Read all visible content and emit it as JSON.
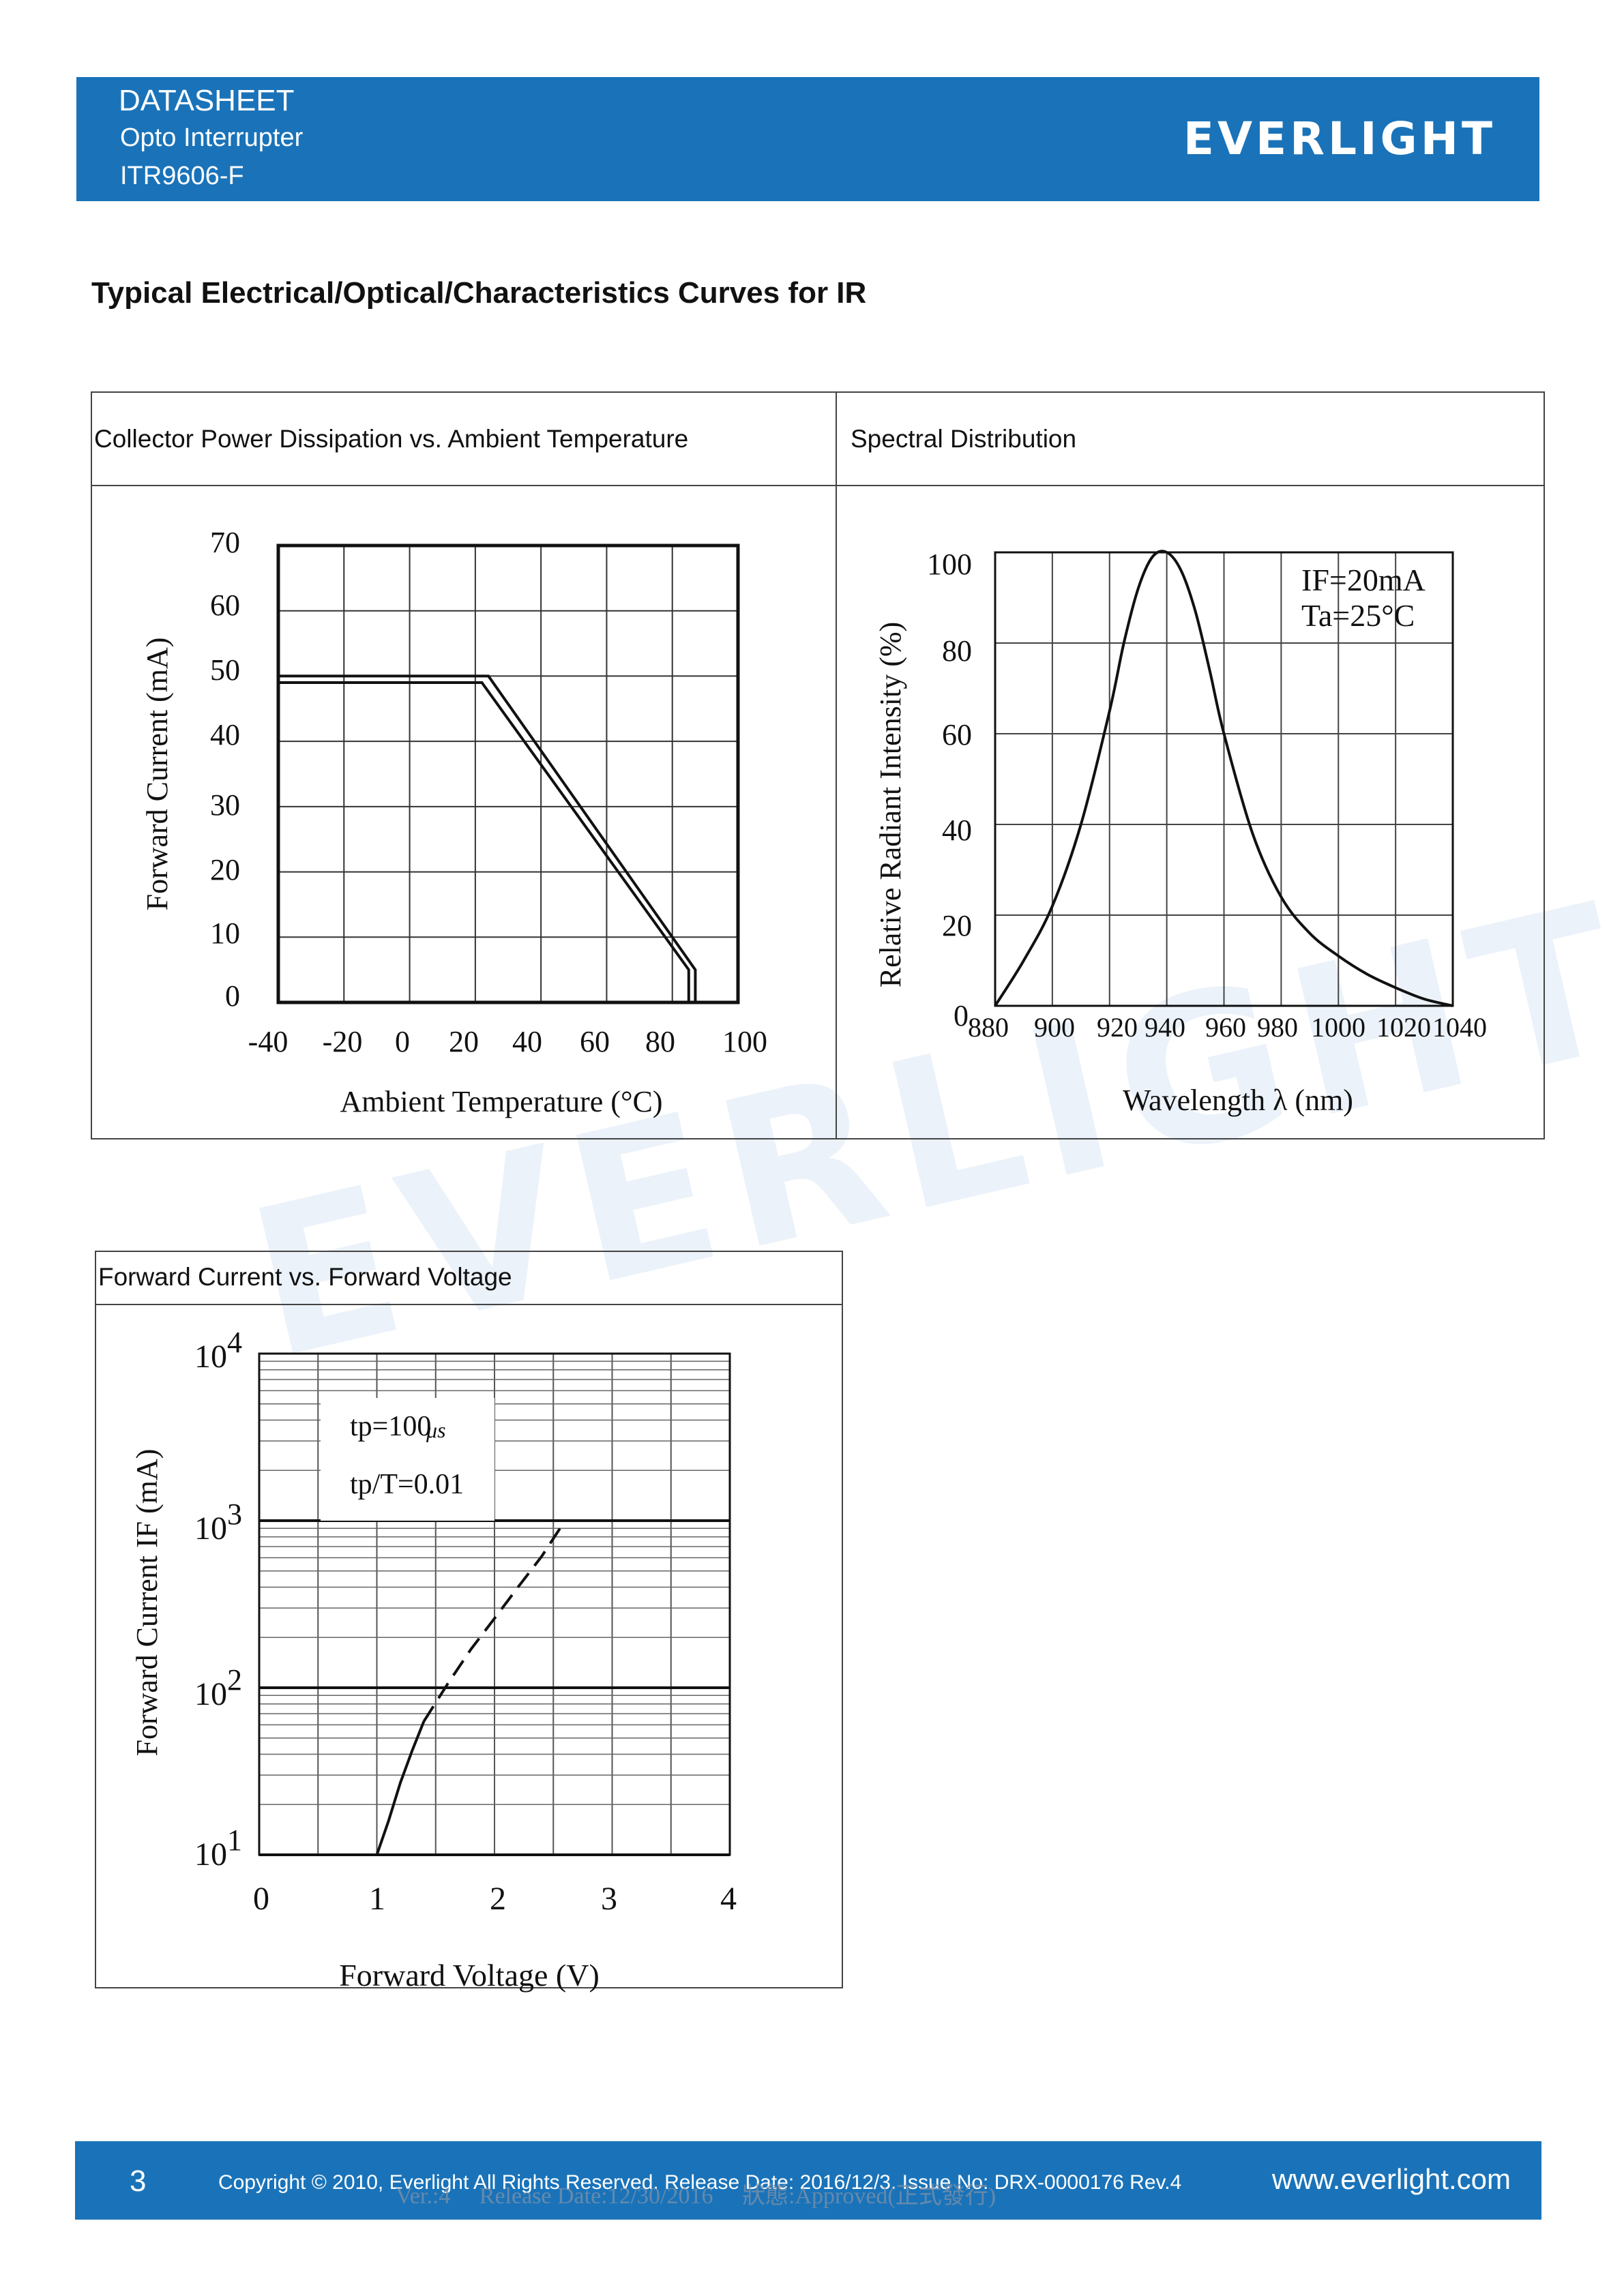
{
  "header": {
    "line1": "DATASHEET",
    "line2": "Opto Interrupter",
    "line3": "ITR9606-F",
    "logo": "EVERLIGHT"
  },
  "section_title": "Typical Electrical/Optical/Characteristics Curves for IR",
  "watermark": "EVERLIGHT",
  "panels": {
    "p1_title": "Collector Power Dissipation vs. Ambient Temperature",
    "p2_title": "Spectral Distribution",
    "p3_title": "Forward Current vs. Forward Voltage"
  },
  "chart_data": [
    {
      "type": "line",
      "xlabel": "Ambient Temperature (°C)",
      "ylabel": "Forward Current (mA)",
      "x_ticks": [
        "-40",
        "-20",
        "0",
        "20",
        "40",
        "60",
        "80",
        "100"
      ],
      "y_ticks": [
        "0",
        "10",
        "20",
        "30",
        "40",
        "50",
        "60",
        "70"
      ],
      "xlim": [
        -40,
        100
      ],
      "ylim": [
        0,
        70
      ],
      "grid": true,
      "series": [
        {
          "x": [
            -40,
            24,
            87,
            87
          ],
          "y": [
            50,
            50,
            5,
            0
          ]
        },
        {
          "x": [
            -40,
            22,
            85,
            85
          ],
          "y": [
            49,
            49,
            5,
            0
          ]
        }
      ]
    },
    {
      "type": "line",
      "xlabel": "Wavelength λ (nm)",
      "ylabel": "Relative Radiant Intensity (%)",
      "x_ticks": [
        "880",
        "900",
        "920",
        "940",
        "960",
        "980",
        "1000",
        "1020",
        "1040"
      ],
      "y_ticks": [
        "0",
        "20",
        "40",
        "60",
        "80",
        "100"
      ],
      "xlim": [
        880,
        1040
      ],
      "ylim": [
        0,
        100
      ],
      "grid": true,
      "annotations": [
        "IF=20mA",
        "Ta=25°C"
      ],
      "series": [
        {
          "x": [
            880,
            890,
            900,
            910,
            920,
            925,
            930,
            935,
            940,
            945,
            950,
            955,
            960,
            970,
            980,
            990,
            1000,
            1010,
            1020,
            1030,
            1040
          ],
          "y": [
            0,
            10,
            22,
            40,
            65,
            80,
            92,
            99,
            100,
            96,
            87,
            74,
            60,
            38,
            24,
            16,
            11,
            7,
            4,
            1.5,
            0
          ]
        }
      ]
    },
    {
      "type": "line",
      "xlabel": "Forward Voltage (V)",
      "ylabel": "Forward Current IF (mA)",
      "x_ticks": [
        "0",
        "1",
        "2",
        "3",
        "4"
      ],
      "y_ticks_base": "10",
      "y_ticks_exp": [
        "1",
        "2",
        "3",
        "4"
      ],
      "xlim": [
        0,
        4
      ],
      "ylim": [
        10,
        10000
      ],
      "log_y": true,
      "grid": true,
      "annotations": [
        "tp=100",
        "μs",
        "tp/T=0.01"
      ],
      "series": [
        {
          "style": "solid",
          "x": [
            1.0,
            1.1,
            1.2,
            1.3,
            1.4
          ],
          "y": [
            10,
            16,
            27,
            42,
            63
          ]
        },
        {
          "style": "dashed",
          "x": [
            1.4,
            1.6,
            1.8,
            2.0,
            2.2,
            2.4,
            2.6
          ],
          "y": [
            63,
            105,
            170,
            260,
            400,
            610,
            1000
          ]
        }
      ]
    }
  ],
  "footer": {
    "page": "3",
    "copyright": "Copyright © 2010, Everlight All Rights Reserved. Release Date: 2016/12/3. Issue No: DRX-0000176 Rev.4",
    "overlay": "Ver.:4     Release Date:12/30/2016     狀態:Approved(正式發行)",
    "url": "www.everlight.com"
  }
}
